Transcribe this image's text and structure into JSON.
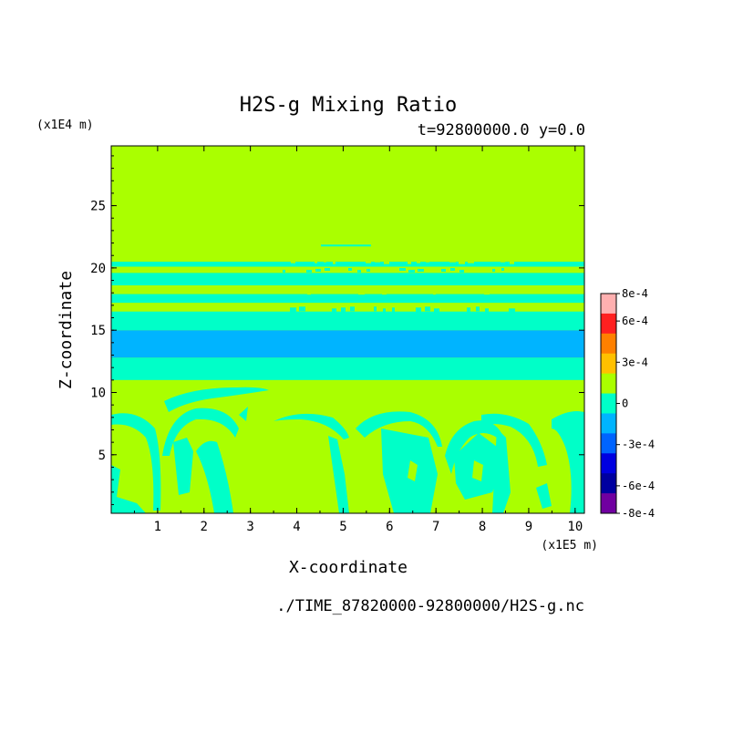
{
  "chart_data": {
    "type": "heatmap",
    "title": "H2S-g Mixing Ratio",
    "subtitle": "t=92800000.0 y=0.0",
    "xlabel": "X-coordinate",
    "ylabel": "Z-coordinate",
    "x_unit": "(x1E5 m)",
    "y_unit": "(x1E4 m)",
    "source_file": "./TIME_87820000-92800000/H2S-g.nc",
    "xlim": [
      0,
      10.2
    ],
    "ylim": [
      0.3,
      29.8
    ],
    "x_ticks": [
      1,
      2,
      3,
      4,
      5,
      6,
      7,
      8,
      9,
      10
    ],
    "y_ticks": [
      5,
      10,
      15,
      20,
      25
    ],
    "colorbar": {
      "min": -0.0008,
      "max": 0.0008,
      "labels": [
        "8e-4",
        "6e-4",
        "3e-4",
        "0",
        "-3e-4",
        "-6e-4",
        "-8e-4"
      ],
      "colors": [
        "#ffb0b0",
        "#ff2020",
        "#ff8000",
        "#ffc000",
        "#aaff00",
        "#00ffc8",
        "#00b4ff",
        "#0064ff",
        "#0000e0",
        "#0000a0",
        "#7000a0"
      ]
    },
    "bands": [
      {
        "z_from": 11.0,
        "z_to": 12.8,
        "level": "-1.5e-4",
        "color": "#00ffc8"
      },
      {
        "z_from": 12.8,
        "z_to": 15.0,
        "level": "-3e-4",
        "color": "#00b4ff"
      },
      {
        "z_from": 15.0,
        "z_to": 16.5,
        "level": "-1.5e-4",
        "color": "#00ffc8"
      },
      {
        "z_from": 17.2,
        "z_to": 17.9,
        "level": "-1.5e-4",
        "color": "#00ffc8"
      },
      {
        "z_from": 18.6,
        "z_to": 19.6,
        "level": "-1.5e-4",
        "color": "#00ffc8"
      },
      {
        "z_from": 20.1,
        "z_to": 20.5,
        "level": "-1.5e-4",
        "color": "#00ffc8"
      }
    ],
    "background_level": {
      "level": "0",
      "color": "#aaff00"
    }
  }
}
